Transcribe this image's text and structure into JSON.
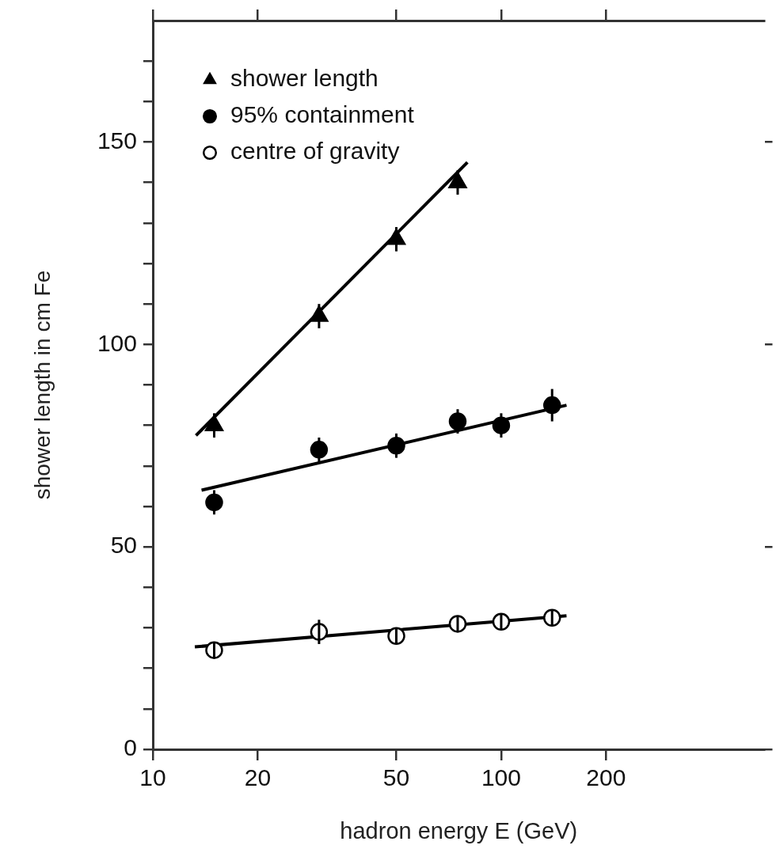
{
  "chart_data": {
    "type": "scatter",
    "xlabel": "hadron energy E (GeV)",
    "ylabel": "shower length in cm Fe",
    "log": "x",
    "xlim": [
      10,
      570
    ],
    "xticks": [
      10,
      20,
      50,
      100,
      200
    ],
    "ylim": [
      0,
      180
    ],
    "yticks": [
      0,
      {
        "value": 10,
        "label": null
      },
      {
        "value": 20,
        "label": null
      },
      {
        "value": 30,
        "label": null
      },
      {
        "value": 40,
        "label": null
      },
      50,
      {
        "value": 60,
        "label": null
      },
      {
        "value": 70,
        "label": null
      },
      {
        "value": 80,
        "label": null
      },
      {
        "value": 90,
        "label": null
      },
      100,
      {
        "value": 110,
        "label": null
      },
      {
        "value": 120,
        "label": null
      },
      {
        "value": 130,
        "label": null
      },
      {
        "value": 140,
        "label": null
      },
      150,
      {
        "value": 160,
        "label": null
      },
      {
        "value": 170,
        "label": null
      }
    ],
    "legend": "top left",
    "series": [
      {
        "name": "shower length",
        "marker": "triangle",
        "color": "#000000",
        "x": [
          15,
          30,
          50,
          75
        ],
        "values": [
          80,
          107,
          126,
          140
        ],
        "errors": [
          3,
          3,
          3,
          3
        ]
      },
      {
        "name": "95% containment",
        "marker": "circle",
        "color": "#000000",
        "x": [
          15,
          30,
          50,
          75,
          100,
          140
        ],
        "values": [
          61,
          74,
          75,
          81,
          80,
          85
        ],
        "errors": [
          3,
          3,
          3,
          3,
          3,
          4
        ]
      },
      {
        "name": "centre of gravity",
        "marker": "circle",
        "color": "#ffffff",
        "x": [
          15,
          30,
          50,
          75,
          100,
          140
        ],
        "values": [
          24.5,
          29,
          28,
          31,
          31.5,
          32.5
        ],
        "errors": [
          2,
          3,
          2,
          2,
          2,
          2
        ]
      },
      {
        "type": "line",
        "color": "#000000",
        "x": [
          13.3,
          80
        ],
        "values": [
          77.5,
          145
        ]
      },
      {
        "type": "line",
        "color": "#000000",
        "x": [
          13.8,
          154
        ],
        "values": [
          64,
          85
        ]
      },
      {
        "type": "line",
        "color": "#000000",
        "x": [
          13.2,
          154
        ],
        "values": [
          25.3,
          33
        ]
      }
    ]
  }
}
